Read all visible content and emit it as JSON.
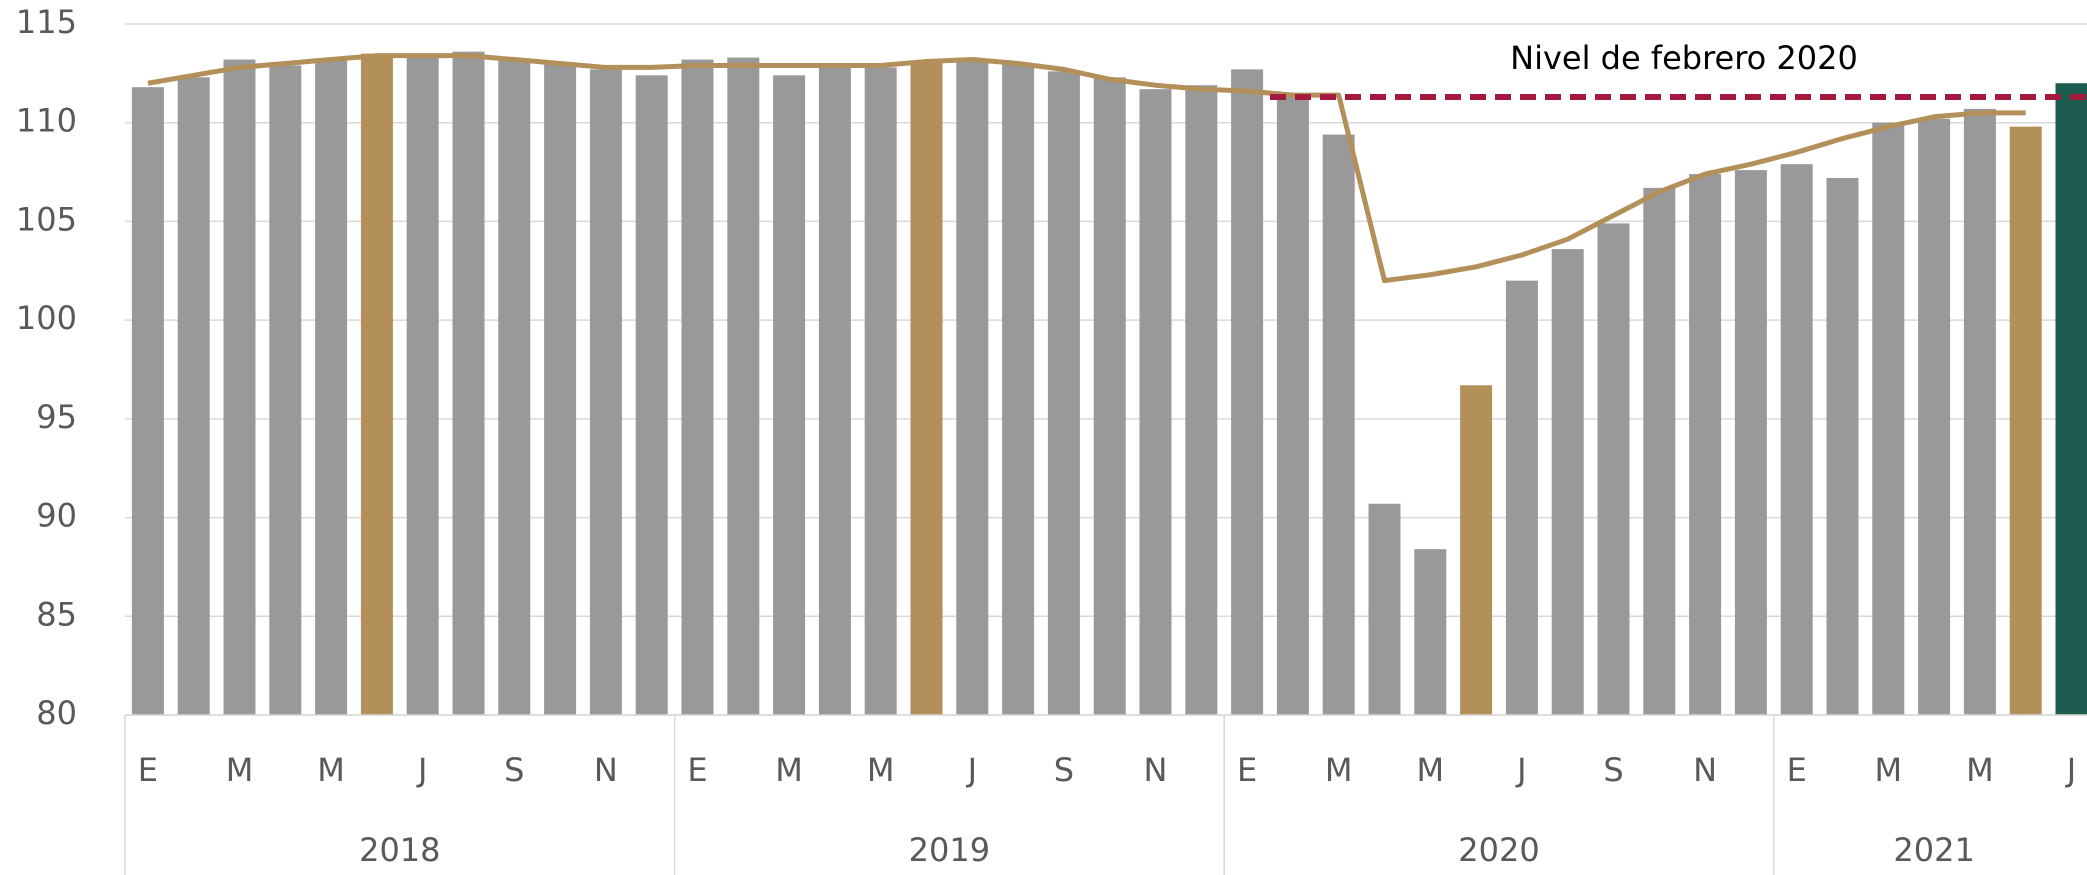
{
  "chart_data": {
    "type": "bar",
    "categories": [
      "E",
      null,
      "M",
      null,
      "M",
      null,
      "J",
      null,
      "S",
      null,
      "N",
      null,
      "E",
      null,
      "M",
      null,
      "M",
      null,
      "J",
      null,
      "S",
      null,
      "N",
      null,
      "E",
      null,
      "M",
      null,
      "M",
      null,
      "J",
      null,
      "S",
      null,
      "N",
      null,
      "E",
      null,
      "M",
      null,
      "M",
      null,
      "J"
    ],
    "year_groups": [
      {
        "name": "2018",
        "count": 12
      },
      {
        "name": "2019",
        "count": 12
      },
      {
        "name": "2020",
        "count": 12
      },
      {
        "name": "2021",
        "count": 7
      }
    ],
    "values": [
      111.8,
      112.3,
      113.2,
      112.9,
      113.2,
      113.5,
      113.4,
      113.6,
      113.2,
      113.0,
      112.7,
      112.4,
      113.2,
      113.3,
      112.4,
      113.0,
      112.8,
      113.1,
      113.2,
      113.0,
      112.6,
      112.3,
      111.7,
      111.9,
      112.7,
      111.3,
      109.4,
      90.7,
      88.4,
      96.7,
      102.0,
      103.6,
      104.9,
      106.7,
      107.4,
      107.6,
      107.9,
      107.2,
      110.0,
      110.2,
      110.7,
      109.8,
      112.0
    ],
    "colors": [
      "#999999",
      "#999999",
      "#999999",
      "#999999",
      "#999999",
      "#b38f59",
      "#999999",
      "#999999",
      "#999999",
      "#999999",
      "#999999",
      "#999999",
      "#999999",
      "#999999",
      "#999999",
      "#999999",
      "#999999",
      "#b38f59",
      "#999999",
      "#999999",
      "#999999",
      "#999999",
      "#999999",
      "#999999",
      "#999999",
      "#999999",
      "#999999",
      "#999999",
      "#999999",
      "#b38f59",
      "#999999",
      "#999999",
      "#999999",
      "#999999",
      "#999999",
      "#999999",
      "#999999",
      "#999999",
      "#999999",
      "#999999",
      "#999999",
      "#b38f59",
      "#1f5c50"
    ],
    "trend": {
      "color": "#b38f59",
      "values": [
        112.0,
        112.4,
        112.8,
        113.0,
        113.2,
        113.4,
        113.4,
        113.4,
        113.2,
        113.0,
        112.8,
        112.8,
        112.9,
        112.9,
        112.9,
        112.9,
        112.9,
        113.1,
        113.2,
        113.0,
        112.7,
        112.2,
        111.9,
        111.7,
        111.6,
        111.4,
        111.4,
        102.0,
        102.3,
        102.7,
        103.3,
        104.1,
        105.3,
        106.5,
        107.4,
        107.9,
        108.5,
        109.2,
        109.8,
        110.3,
        110.5,
        110.5,
        null
      ]
    },
    "reference": {
      "label": "Nivel de febrero 2020",
      "value": 111.3,
      "color": "#a6193e"
    },
    "ylim": [
      80,
      115
    ],
    "yticks": [
      80,
      85,
      90,
      95,
      100,
      105,
      110,
      115
    ],
    "grid": true
  }
}
